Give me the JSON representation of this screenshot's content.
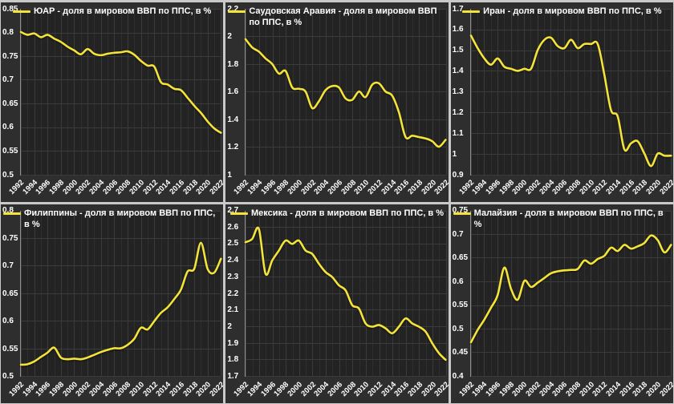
{
  "window": {
    "description_labels": [],
    "colors": {
      "board_background": "#c9c9c9",
      "panel_background": "#2e2e2e",
      "plot_background": "#232323",
      "grid_major": "#3b3b3b",
      "grid_minor": "#2f2f2f",
      "axis_line": "#a8a8a8",
      "series_line": "#f3e33a",
      "text": "#ffffff"
    }
  },
  "x_axis": {
    "start_year": 1992,
    "end_year": 2022,
    "step": 1,
    "tick_labels": [
      "1992",
      "1994",
      "1996",
      "1998",
      "2000",
      "2002",
      "2004",
      "2006",
      "2008",
      "2010",
      "2012",
      "2014",
      "2016",
      "2018",
      "2020",
      "2022"
    ]
  },
  "chart_data": [
    {
      "type": "line",
      "title": "ЮАР - доля в мировом ВВП по ППС, в %",
      "legend_position": "top-center",
      "grid": true,
      "line_color": "#f3e33a",
      "ylim": [
        0.5,
        0.85
      ],
      "y_step": 0.05,
      "y_ticks": [
        "0.85",
        "0.8",
        "0.75",
        "0.7",
        "0.65",
        "0.6",
        "0.55",
        "0.5"
      ],
      "x": [
        1992,
        1993,
        1994,
        1995,
        1996,
        1997,
        1998,
        1999,
        2000,
        2001,
        2002,
        2003,
        2004,
        2005,
        2006,
        2007,
        2008,
        2009,
        2010,
        2011,
        2012,
        2013,
        2014,
        2015,
        2016,
        2017,
        2018,
        2019,
        2020,
        2021,
        2022
      ],
      "values": [
        0.801,
        0.795,
        0.798,
        0.79,
        0.795,
        0.787,
        0.78,
        0.77,
        0.762,
        0.754,
        0.765,
        0.755,
        0.752,
        0.755,
        0.757,
        0.758,
        0.76,
        0.753,
        0.74,
        0.73,
        0.728,
        0.695,
        0.69,
        0.681,
        0.678,
        0.662,
        0.645,
        0.63,
        0.612,
        0.597,
        0.588
      ]
    },
    {
      "type": "line",
      "title": "Саудовская Аравия - доля в мировом ВВП по ППС, в %",
      "legend_position": "top-center",
      "grid": true,
      "line_color": "#f3e33a",
      "ylim": [
        1.0,
        2.2
      ],
      "y_step": 0.2,
      "y_ticks": [
        "2.2",
        "2",
        "1.8",
        "1.6",
        "1.4",
        "1.2",
        "1"
      ],
      "x": [
        1992,
        1993,
        1994,
        1995,
        1996,
        1997,
        1998,
        1999,
        2000,
        2001,
        2002,
        2003,
        2004,
        2005,
        2006,
        2007,
        2008,
        2009,
        2010,
        2011,
        2012,
        2013,
        2014,
        2015,
        2016,
        2017,
        2018,
        2019,
        2020,
        2021,
        2022
      ],
      "values": [
        1.98,
        1.92,
        1.89,
        1.84,
        1.8,
        1.73,
        1.75,
        1.63,
        1.62,
        1.6,
        1.48,
        1.53,
        1.61,
        1.64,
        1.63,
        1.55,
        1.54,
        1.6,
        1.56,
        1.65,
        1.66,
        1.6,
        1.57,
        1.45,
        1.27,
        1.28,
        1.27,
        1.26,
        1.24,
        1.2,
        1.25
      ]
    },
    {
      "type": "line",
      "title": "Иран - доля в мировом ВВП по ППС, в %",
      "legend_position": "top-center",
      "grid": true,
      "line_color": "#f3e33a",
      "ylim": [
        0.9,
        1.7
      ],
      "y_step": 0.1,
      "y_ticks": [
        "1.7",
        "1.6",
        "1.5",
        "1.4",
        "1.3",
        "1.2",
        "1.1",
        "1",
        "0.9"
      ],
      "x": [
        1992,
        1993,
        1994,
        1995,
        1996,
        1997,
        1998,
        1999,
        2000,
        2001,
        2002,
        2003,
        2004,
        2005,
        2006,
        2007,
        2008,
        2009,
        2010,
        2011,
        2012,
        2013,
        2014,
        2015,
        2016,
        2017,
        2018,
        2019,
        2020,
        2021,
        2022
      ],
      "values": [
        1.57,
        1.51,
        1.46,
        1.43,
        1.46,
        1.42,
        1.41,
        1.4,
        1.41,
        1.41,
        1.5,
        1.55,
        1.56,
        1.52,
        1.51,
        1.55,
        1.51,
        1.53,
        1.53,
        1.53,
        1.38,
        1.21,
        1.18,
        1.02,
        1.05,
        1.06,
        1.0,
        0.94,
        1.0,
        0.99,
        0.99
      ]
    },
    {
      "type": "line",
      "title": "Филиппины - доля в мировом ВВП по ППС, в %",
      "legend_position": "top-center",
      "grid": true,
      "line_color": "#f3e33a",
      "ylim": [
        0.5,
        0.8
      ],
      "y_step": 0.05,
      "y_ticks": [
        "0.8",
        "0.75",
        "0.7",
        "0.65",
        "0.6",
        "0.55",
        "0.5"
      ],
      "x": [
        1992,
        1993,
        1994,
        1995,
        1996,
        1997,
        1998,
        1999,
        2000,
        2001,
        2002,
        2003,
        2004,
        2005,
        2006,
        2007,
        2008,
        2009,
        2010,
        2011,
        2012,
        2013,
        2014,
        2015,
        2016,
        2017,
        2018,
        2019,
        2020,
        2021,
        2022
      ],
      "values": [
        0.521,
        0.522,
        0.527,
        0.535,
        0.543,
        0.552,
        0.534,
        0.531,
        0.532,
        0.531,
        0.534,
        0.539,
        0.544,
        0.548,
        0.551,
        0.551,
        0.557,
        0.568,
        0.588,
        0.585,
        0.6,
        0.615,
        0.625,
        0.64,
        0.657,
        0.69,
        0.695,
        0.742,
        0.695,
        0.688,
        0.713
      ]
    },
    {
      "type": "line",
      "title": "Мексика - доля в мировом ВВП по ППС, в %",
      "legend_position": "top-center",
      "grid": true,
      "line_color": "#f3e33a",
      "ylim": [
        1.7,
        2.7
      ],
      "y_step": 0.1,
      "y_ticks": [
        "2.7",
        "2.6",
        "2.5",
        "2.4",
        "2.3",
        "2.2",
        "2.1",
        "2",
        "1.9",
        "1.8",
        "1.7"
      ],
      "x": [
        1992,
        1993,
        1994,
        1995,
        1996,
        1997,
        1998,
        1999,
        2000,
        2001,
        2002,
        2003,
        2004,
        2005,
        2006,
        2007,
        2008,
        2009,
        2010,
        2011,
        2012,
        2013,
        2014,
        2015,
        2016,
        2017,
        2018,
        2019,
        2020,
        2021,
        2022
      ],
      "values": [
        2.51,
        2.53,
        2.59,
        2.32,
        2.4,
        2.46,
        2.52,
        2.5,
        2.52,
        2.46,
        2.44,
        2.38,
        2.33,
        2.3,
        2.25,
        2.22,
        2.13,
        2.11,
        2.02,
        2.0,
        2.01,
        1.99,
        1.96,
        2.0,
        2.05,
        2.02,
        2.0,
        1.97,
        1.9,
        1.84,
        1.8
      ]
    },
    {
      "type": "line",
      "title": "Малайзия - доля в мировом ВВП по ППС, в %",
      "legend_position": "top-center",
      "grid": true,
      "line_color": "#f3e33a",
      "ylim": [
        0.4,
        0.75
      ],
      "y_step": 0.05,
      "y_ticks": [
        "0.75",
        "0.7",
        "0.65",
        "0.6",
        "0.55",
        "0.5",
        "0.45",
        "0.4"
      ],
      "x": [
        1992,
        1993,
        1994,
        1995,
        1996,
        1997,
        1998,
        1999,
        2000,
        2001,
        2002,
        2003,
        2004,
        2005,
        2006,
        2007,
        2008,
        2009,
        2010,
        2011,
        2012,
        2013,
        2014,
        2015,
        2016,
        2017,
        2018,
        2019,
        2020,
        2021,
        2022
      ],
      "values": [
        0.472,
        0.498,
        0.52,
        0.545,
        0.572,
        0.63,
        0.585,
        0.562,
        0.602,
        0.589,
        0.598,
        0.608,
        0.618,
        0.622,
        0.624,
        0.625,
        0.627,
        0.645,
        0.638,
        0.648,
        0.655,
        0.672,
        0.665,
        0.678,
        0.67,
        0.675,
        0.682,
        0.698,
        0.688,
        0.662,
        0.678
      ]
    }
  ]
}
